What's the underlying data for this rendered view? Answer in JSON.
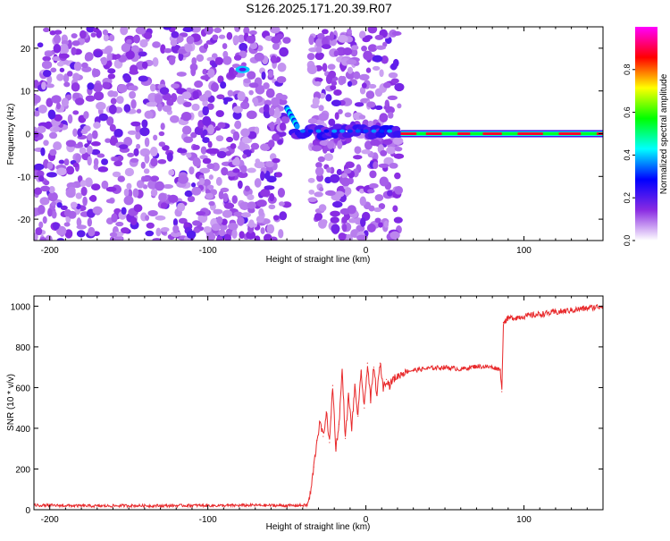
{
  "title": "S126.2025.171.20.39.R07",
  "chart_data": [
    {
      "type": "heatmap",
      "xlabel": "Height of straight line (km)",
      "ylabel": "Frequency (Hz)",
      "xlim": [
        -210,
        150
      ],
      "ylim": [
        -25,
        25
      ],
      "xticks": [
        -200,
        -100,
        0,
        100
      ],
      "yticks": [
        -20,
        -10,
        0,
        10,
        20
      ],
      "grid": false,
      "colorbar": {
        "label": "Normalized spectral amplitude",
        "range": [
          0,
          1
        ],
        "ticks": [
          0.0,
          0.2,
          0.4,
          0.6,
          0.8
        ],
        "colors": [
          "#ffffff",
          "#8a2be2",
          "#0000ff",
          "#00ffff",
          "#00ff00",
          "#ffff00",
          "#ff0000",
          "#ff00ff"
        ]
      },
      "regions": [
        {
          "x": [
            -210,
            -50
          ],
          "content": "scattered low-amplitude noise (0.1-0.3)"
        },
        {
          "x": [
            -50,
            -45
          ],
          "content": "steep track descending from about 6 Hz to 2 Hz"
        },
        {
          "x": [
            -45,
            22
          ],
          "content": "noisy track near 0 Hz (amplitude 0.3-0.5) with scattered noise"
        },
        {
          "x": [
            22,
            150
          ],
          "content": "strong narrow track at 0 Hz (amplitude 0.8-1.0)"
        }
      ],
      "features": [
        {
          "x": -78,
          "y": 15,
          "amplitude": 0.4
        }
      ]
    },
    {
      "type": "line",
      "xlabel": "Height of straight line (km)",
      "ylabel": "SNR (10 * v/v)",
      "xlim": [
        -210,
        150
      ],
      "ylim": [
        0,
        1050
      ],
      "xticks": [
        -200,
        -100,
        0,
        100
      ],
      "yticks": [
        0,
        200,
        400,
        600,
        800,
        1000
      ],
      "grid": false,
      "series": [
        {
          "color": "#e8282a",
          "x": [
            -210,
            -190,
            -170,
            -150,
            -130,
            -110,
            -90,
            -70,
            -50,
            -37,
            -35,
            -33,
            -31,
            -29,
            -27,
            -25,
            -23,
            -21,
            -19,
            -17,
            -15,
            -13,
            -11,
            -9,
            -7,
            -5,
            -3,
            -1,
            1,
            3,
            5,
            7,
            9,
            11,
            13,
            15,
            17,
            19,
            21,
            23,
            25,
            30,
            35,
            40,
            50,
            60,
            70,
            80,
            85,
            86,
            87,
            90,
            100,
            110,
            120,
            130,
            140,
            150
          ],
          "y": [
            22,
            20,
            18,
            20,
            19,
            21,
            20,
            22,
            20,
            22,
            80,
            210,
            340,
            430,
            360,
            480,
            330,
            610,
            300,
            420,
            690,
            350,
            560,
            400,
            600,
            460,
            680,
            500,
            720,
            540,
            700,
            560,
            720,
            600,
            640,
            610,
            640,
            650,
            660,
            670,
            680,
            685,
            690,
            695,
            700,
            690,
            705,
            700,
            690,
            580,
            920,
            940,
            950,
            960,
            970,
            980,
            990,
            1000
          ]
        }
      ]
    }
  ]
}
